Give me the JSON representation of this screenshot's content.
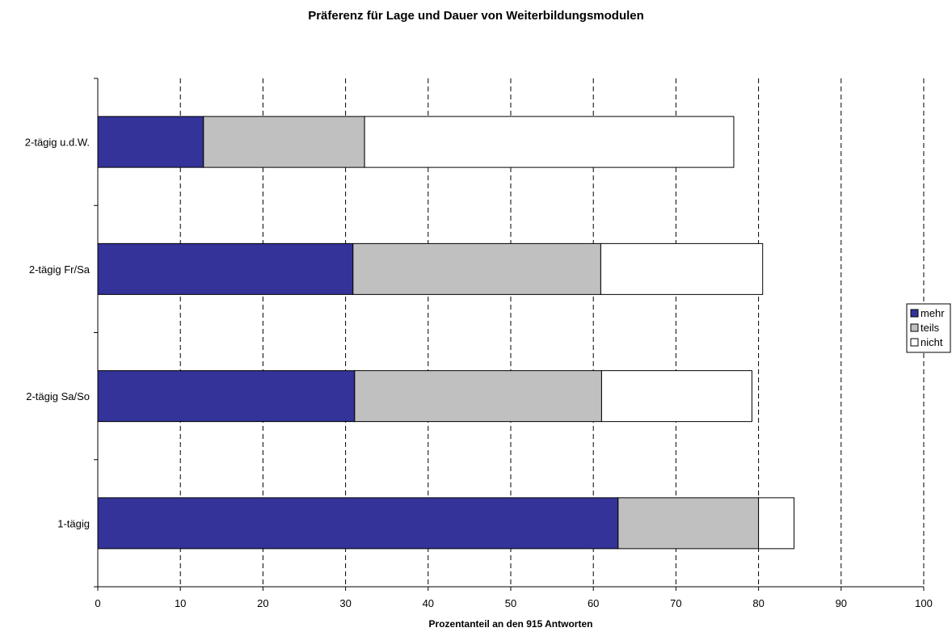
{
  "chart_data": {
    "type": "bar",
    "orientation": "horizontal",
    "stacked": true,
    "title": "Präferenz für Lage und Dauer von Weiterbildungsmodulen",
    "xlabel": "Prozentanteil an den 915 Antworten",
    "ylabel": "",
    "xlim": [
      0,
      100
    ],
    "x_ticks": [
      "0",
      "10",
      "20",
      "30",
      "40",
      "50",
      "60",
      "70",
      "80",
      "90",
      "100"
    ],
    "grid": "vertical dashed",
    "legend_position": "right",
    "categories": [
      "1-tägig",
      "2-tägig Sa/So",
      "2-tägig Fr/Sa",
      "2-tägig u.d.W."
    ],
    "series": [
      {
        "name": "mehr",
        "color": "#333399",
        "values": [
          63.0,
          31.1,
          30.9,
          12.8
        ]
      },
      {
        "name": "teils",
        "color": "#c0c0c0",
        "values": [
          17.0,
          29.9,
          30.0,
          19.5
        ]
      },
      {
        "name": "nicht",
        "color": "#ffffff",
        "values": [
          4.3,
          18.2,
          19.6,
          44.7
        ]
      }
    ]
  }
}
